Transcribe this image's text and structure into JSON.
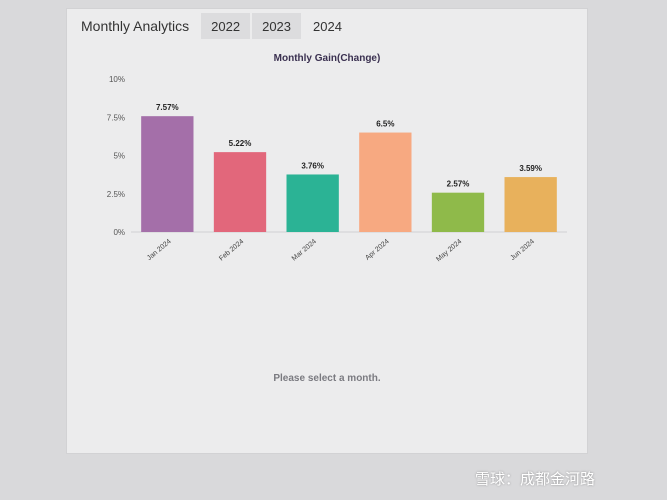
{
  "header": {
    "title": "Monthly Analytics",
    "tabs": [
      "2022",
      "2023",
      "2024"
    ],
    "active_tab": "2024"
  },
  "hint": "Please select a month.",
  "watermark": "雪球：成都金河路",
  "chart_data": {
    "type": "bar",
    "title": "Monthly Gain(Change)",
    "categories": [
      "Jan 2024",
      "Feb 2024",
      "Mar 2024",
      "Apr 2024",
      "May 2024",
      "Jun 2024"
    ],
    "values": [
      7.57,
      5.22,
      3.76,
      6.5,
      2.57,
      3.59
    ],
    "value_labels": [
      "7.57%",
      "5.22%",
      "3.76%",
      "6.5%",
      "2.57%",
      "3.59%"
    ],
    "colors": [
      "#a46fa9",
      "#e2677b",
      "#2bb395",
      "#f7a981",
      "#8fba4a",
      "#e8b15c"
    ],
    "ylim": [
      0,
      10
    ],
    "yticks": [
      0,
      2.5,
      5,
      7.5,
      10
    ],
    "ytick_labels": [
      "0%",
      "2.5%",
      "5%",
      "7.5%",
      "10%"
    ],
    "grid": false,
    "legend": "none"
  }
}
